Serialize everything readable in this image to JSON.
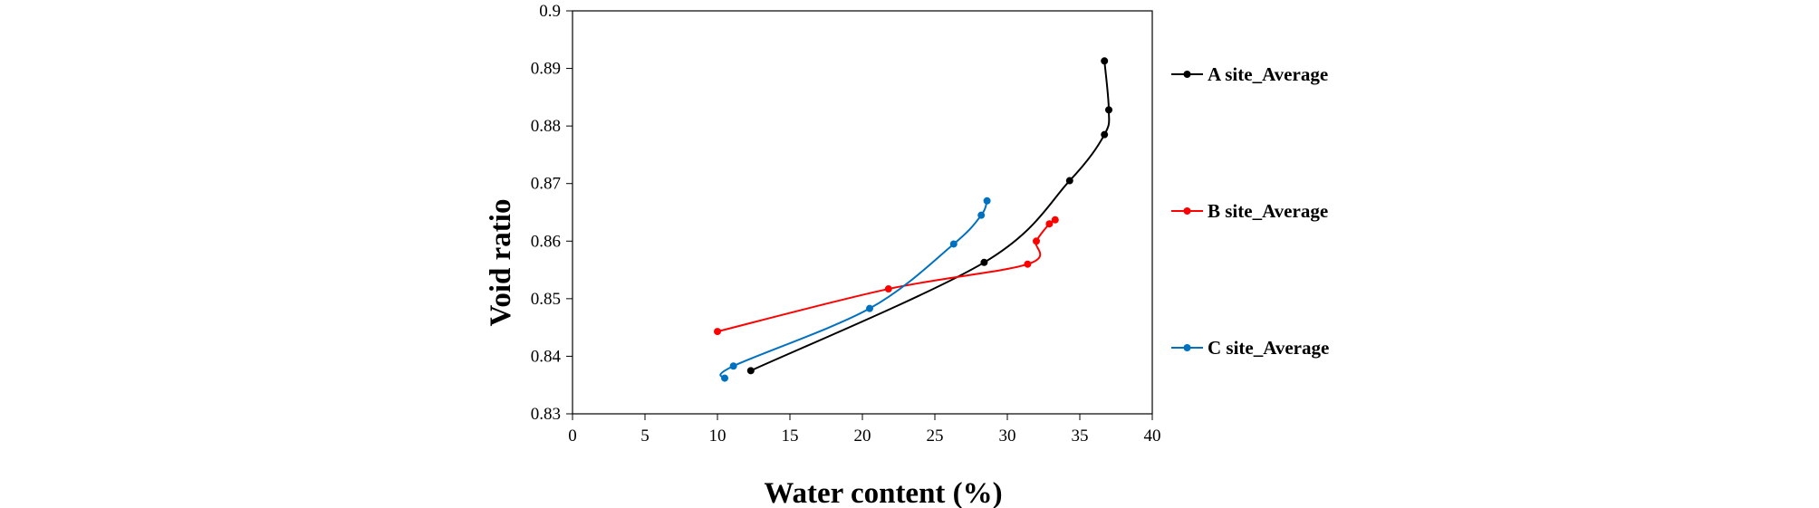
{
  "chart_data": {
    "type": "scatter",
    "title": "",
    "xlabel": "Water content (%)",
    "ylabel": "Void ratio",
    "xlim": [
      0,
      40
    ],
    "ylim": [
      0.83,
      0.9
    ],
    "x_ticks": [
      "0",
      "5",
      "10",
      "15",
      "20",
      "25",
      "30",
      "35",
      "40"
    ],
    "y_ticks": [
      "0.83",
      "0.84",
      "0.85",
      "0.86",
      "0.87",
      "0.88",
      "0.89",
      "0.9"
    ],
    "grid": false,
    "legend_position": "right",
    "line_style": "smooth lines with markers",
    "series": [
      {
        "name": "A site_Average",
        "color": "#000000",
        "points": [
          [
            12.3,
            0.8375
          ],
          [
            28.4,
            0.8563
          ],
          [
            34.3,
            0.8705
          ],
          [
            36.7,
            0.8785
          ],
          [
            37.0,
            0.8828
          ],
          [
            36.7,
            0.8913
          ]
        ]
      },
      {
        "name": "B site_Average",
        "color": "#ff0000",
        "points": [
          [
            10.0,
            0.8443
          ],
          [
            21.8,
            0.8517
          ],
          [
            31.4,
            0.856
          ],
          [
            32.0,
            0.86
          ],
          [
            32.9,
            0.863
          ],
          [
            33.3,
            0.8637
          ]
        ]
      },
      {
        "name": "C site_Average",
        "color": "#0070c0",
        "points": [
          [
            10.5,
            0.8362
          ],
          [
            11.1,
            0.8383
          ],
          [
            20.5,
            0.8483
          ],
          [
            26.3,
            0.8595
          ],
          [
            28.2,
            0.8645
          ],
          [
            28.6,
            0.867
          ]
        ]
      }
    ]
  }
}
